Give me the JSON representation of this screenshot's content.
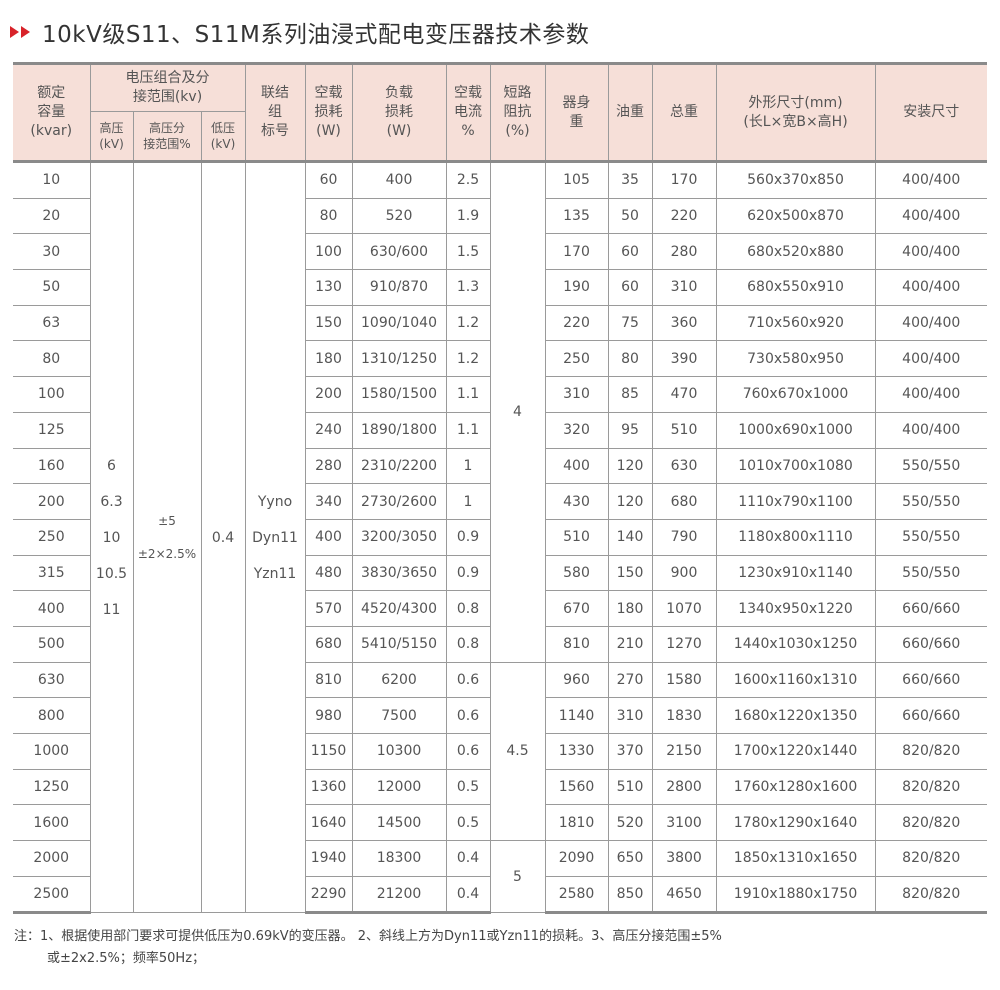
{
  "title": "10kV级S11、S11M系列油浸式配电变压器技术参数",
  "colors": {
    "accent": "#d8232a",
    "header_bg": "#f6dfd8"
  },
  "header": {
    "capacity": [
      "额定",
      "容量",
      "(kvar)"
    ],
    "voltage_group": [
      "电压组合及分",
      "接范围(kv)"
    ],
    "hv": [
      "高压",
      "(kV)"
    ],
    "tap": [
      "高压分",
      "接范围%"
    ],
    "lv": [
      "低压",
      "(kV)"
    ],
    "vector": [
      "联结",
      "组",
      "标号"
    ],
    "no_load_loss": [
      "空载",
      "损耗",
      "(W)"
    ],
    "load_loss": [
      "负载",
      "损耗",
      "(W)"
    ],
    "no_load_current": [
      "空载",
      "电流",
      "%"
    ],
    "impedance": [
      "短路",
      "阻抗",
      "(%)"
    ],
    "body_weight": [
      "器身",
      "重"
    ],
    "oil_weight": "油重",
    "total_weight": "总重",
    "dimensions": [
      "外形尺寸(mm)",
      "(长L×宽B×高H)"
    ],
    "install": "安装尺寸"
  },
  "merged": {
    "hv": [
      "6",
      "6.3",
      "10",
      "10.5",
      "11"
    ],
    "tap": [
      "±5",
      "±2×2.5%"
    ],
    "lv": "0.4",
    "vector": [
      "Yyno",
      "Dyn11",
      "Yzn11"
    ],
    "impedance": [
      "4",
      "4.5",
      "5"
    ]
  },
  "rows": [
    [
      "10",
      "60",
      "400",
      "2.5",
      "105",
      "35",
      "170",
      "560x370x850",
      "400/400"
    ],
    [
      "20",
      "80",
      "520",
      "1.9",
      "135",
      "50",
      "220",
      "620x500x870",
      "400/400"
    ],
    [
      "30",
      "100",
      "630/600",
      "1.5",
      "170",
      "60",
      "280",
      "680x520x880",
      "400/400"
    ],
    [
      "50",
      "130",
      "910/870",
      "1.3",
      "190",
      "60",
      "310",
      "680x550x910",
      "400/400"
    ],
    [
      "63",
      "150",
      "1090/1040",
      "1.2",
      "220",
      "75",
      "360",
      "710x560x920",
      "400/400"
    ],
    [
      "80",
      "180",
      "1310/1250",
      "1.2",
      "250",
      "80",
      "390",
      "730x580x950",
      "400/400"
    ],
    [
      "100",
      "200",
      "1580/1500",
      "1.1",
      "310",
      "85",
      "470",
      "760x670x1000",
      "400/400"
    ],
    [
      "125",
      "240",
      "1890/1800",
      "1.1",
      "320",
      "95",
      "510",
      "1000x690x1000",
      "400/400"
    ],
    [
      "160",
      "280",
      "2310/2200",
      "1",
      "400",
      "120",
      "630",
      "1010x700x1080",
      "550/550"
    ],
    [
      "200",
      "340",
      "2730/2600",
      "1",
      "430",
      "120",
      "680",
      "1110x790x1100",
      "550/550"
    ],
    [
      "250",
      "400",
      "3200/3050",
      "0.9",
      "510",
      "140",
      "790",
      "1180x800x1110",
      "550/550"
    ],
    [
      "315",
      "480",
      "3830/3650",
      "0.9",
      "580",
      "150",
      "900",
      "1230x910x1140",
      "550/550"
    ],
    [
      "400",
      "570",
      "4520/4300",
      "0.8",
      "670",
      "180",
      "1070",
      "1340x950x1220",
      "660/660"
    ],
    [
      "500",
      "680",
      "5410/5150",
      "0.8",
      "810",
      "210",
      "1270",
      "1440x1030x1250",
      "660/660"
    ],
    [
      "630",
      "810",
      "6200",
      "0.6",
      "960",
      "270",
      "1580",
      "1600x1160x1310",
      "660/660"
    ],
    [
      "800",
      "980",
      "7500",
      "0.6",
      "1140",
      "310",
      "1830",
      "1680x1220x1350",
      "660/660"
    ],
    [
      "1000",
      "1150",
      "10300",
      "0.6",
      "1330",
      "370",
      "2150",
      "1700x1220x1440",
      "820/820"
    ],
    [
      "1250",
      "1360",
      "12000",
      "0.5",
      "1560",
      "510",
      "2800",
      "1760x1280x1600",
      "820/820"
    ],
    [
      "1600",
      "1640",
      "14500",
      "0.5",
      "1810",
      "520",
      "3100",
      "1780x1290x1640",
      "820/820"
    ],
    [
      "2000",
      "1940",
      "18300",
      "0.4",
      "2090",
      "650",
      "3800",
      "1850x1310x1650",
      "820/820"
    ],
    [
      "2500",
      "2290",
      "21200",
      "0.4",
      "2580",
      "850",
      "4650",
      "1910x1880x1750",
      "820/820"
    ]
  ],
  "note": {
    "line1": "注：1、根据使用部门要求可提供低压为0.69kV的变压器。 2、斜线上方为Dyn11或Yzn11的损耗。3、高压分接范围±5%",
    "line2": "或±2x2.5%；频率50Hz；"
  }
}
